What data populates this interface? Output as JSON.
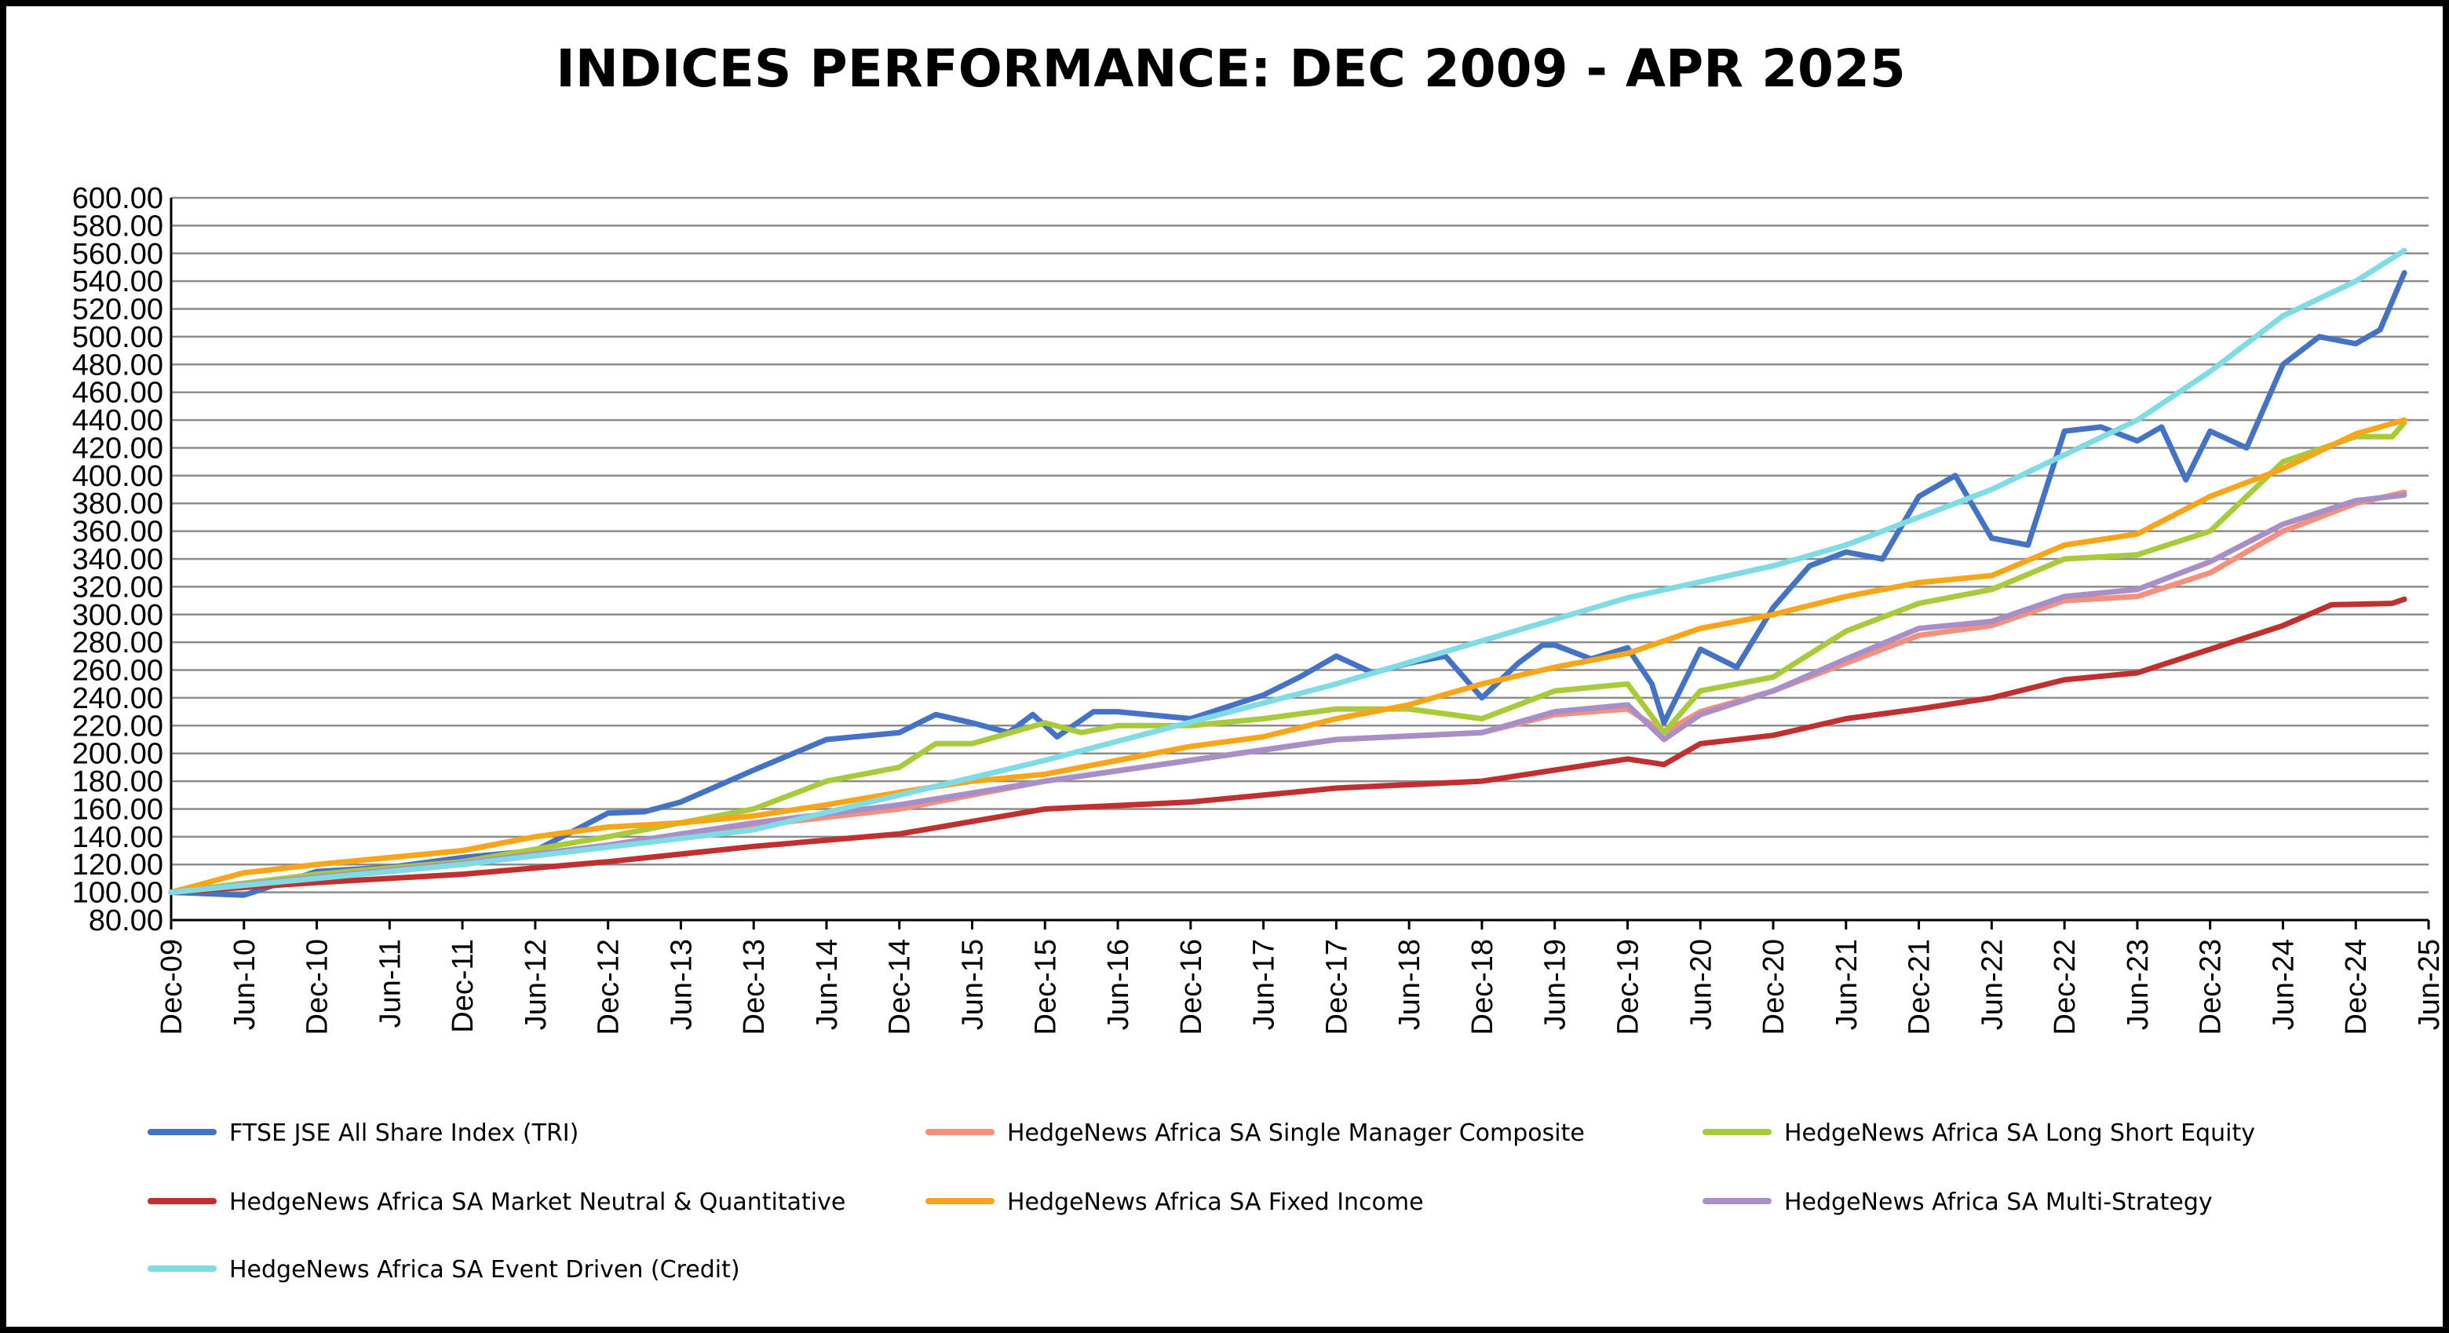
{
  "chart_data": {
    "type": "line",
    "title": "INDICES PERFORMANCE: DEC 2009 - APR 2025",
    "xlabel": "",
    "ylabel": "",
    "ylim": [
      80,
      600
    ],
    "y_ticks": [
      "80.00",
      "100.00",
      "120.00",
      "140.00",
      "160.00",
      "180.00",
      "200.00",
      "220.00",
      "240.00",
      "260.00",
      "280.00",
      "300.00",
      "320.00",
      "340.00",
      "360.00",
      "380.00",
      "400.00",
      "420.00",
      "440.00",
      "460.00",
      "480.00",
      "500.00",
      "520.00",
      "540.00",
      "560.00",
      "580.00",
      "600.00"
    ],
    "x_ticks": [
      "Dec-09",
      "Jun-10",
      "Dec-10",
      "Jun-11",
      "Dec-11",
      "Jun-12",
      "Dec-12",
      "Jun-13",
      "Dec-13",
      "Jun-14",
      "Dec-14",
      "Jun-15",
      "Dec-15",
      "Jun-16",
      "Dec-16",
      "Jun-17",
      "Dec-17",
      "Jun-18",
      "Dec-18",
      "Jun-19",
      "Dec-19",
      "Jun-20",
      "Dec-20",
      "Jun-21",
      "Dec-21",
      "Jun-22",
      "Dec-22",
      "Jun-23",
      "Dec-23",
      "Jun-24",
      "Dec-24",
      "Jun-25"
    ],
    "x_range": [
      "Dec-09",
      "Jun-25"
    ],
    "grid": true,
    "legend_position": "bottom",
    "series": [
      {
        "name": "FTSE JSE All Share Index (TRI)",
        "color": "#4472C4",
        "points": [
          [
            "Dec-09",
            100
          ],
          [
            "Jun-10",
            98
          ],
          [
            "Dec-10",
            115
          ],
          [
            "Jun-11",
            118
          ],
          [
            "Dec-11",
            125
          ],
          [
            "Jun-12",
            130
          ],
          [
            "Dec-12",
            157
          ],
          [
            "Mar-13",
            158
          ],
          [
            "Jun-13",
            165
          ],
          [
            "Dec-13",
            188
          ],
          [
            "Jun-14",
            210
          ],
          [
            "Dec-14",
            215
          ],
          [
            "Mar-15",
            228
          ],
          [
            "Jun-15",
            222
          ],
          [
            "Sep-15",
            215
          ],
          [
            "Nov-15",
            228
          ],
          [
            "Jan-16",
            212
          ],
          [
            "Apr-16",
            230
          ],
          [
            "Jun-16",
            230
          ],
          [
            "Dec-16",
            225
          ],
          [
            "Jun-17",
            242
          ],
          [
            "Sep-17",
            255
          ],
          [
            "Dec-17",
            270
          ],
          [
            "Mar-18",
            258
          ],
          [
            "Jun-18",
            265
          ],
          [
            "Sep-18",
            270
          ],
          [
            "Dec-18",
            240
          ],
          [
            "Mar-19",
            265
          ],
          [
            "May-19",
            278
          ],
          [
            "Jun-19",
            278
          ],
          [
            "Sep-19",
            268
          ],
          [
            "Dec-19",
            276
          ],
          [
            "Feb-20",
            250
          ],
          [
            "Mar-20",
            222
          ],
          [
            "Jun-20",
            275
          ],
          [
            "Sep-20",
            262
          ],
          [
            "Dec-20",
            305
          ],
          [
            "Mar-21",
            335
          ],
          [
            "Jun-21",
            345
          ],
          [
            "Sep-21",
            340
          ],
          [
            "Dec-21",
            385
          ],
          [
            "Mar-22",
            400
          ],
          [
            "Jun-22",
            355
          ],
          [
            "Sep-22",
            350
          ],
          [
            "Dec-22",
            432
          ],
          [
            "Mar-23",
            435
          ],
          [
            "Jun-23",
            425
          ],
          [
            "Aug-23",
            435
          ],
          [
            "Oct-23",
            397
          ],
          [
            "Dec-23",
            432
          ],
          [
            "Mar-24",
            420
          ],
          [
            "Jun-24",
            480
          ],
          [
            "Sep-24",
            500
          ],
          [
            "Dec-24",
            495
          ],
          [
            "Feb-25",
            505
          ],
          [
            "Apr-25",
            546
          ]
        ]
      },
      {
        "name": "HedgeNews Africa SA Single Manager Composite",
        "color": "#F4907C",
        "points": [
          [
            "Dec-09",
            100
          ],
          [
            "Dec-10",
            110
          ],
          [
            "Dec-11",
            120
          ],
          [
            "Dec-12",
            133
          ],
          [
            "Dec-13",
            148
          ],
          [
            "Dec-14",
            160
          ],
          [
            "Dec-15",
            180
          ],
          [
            "Dec-16",
            195
          ],
          [
            "Dec-17",
            210
          ],
          [
            "Dec-18",
            215
          ],
          [
            "Jun-19",
            228
          ],
          [
            "Dec-19",
            232
          ],
          [
            "Mar-20",
            215
          ],
          [
            "Jun-20",
            230
          ],
          [
            "Dec-20",
            245
          ],
          [
            "Jun-21",
            265
          ],
          [
            "Dec-21",
            285
          ],
          [
            "Jun-22",
            292
          ],
          [
            "Dec-22",
            310
          ],
          [
            "Jun-23",
            313
          ],
          [
            "Dec-23",
            330
          ],
          [
            "Jun-24",
            360
          ],
          [
            "Dec-24",
            380
          ],
          [
            "Apr-25",
            388
          ]
        ]
      },
      {
        "name": "HedgeNews Africa SA Long Short Equity",
        "color": "#A9CB3B",
        "points": [
          [
            "Dec-09",
            100
          ],
          [
            "Dec-10",
            113
          ],
          [
            "Dec-11",
            122
          ],
          [
            "Dec-12",
            140
          ],
          [
            "Dec-13",
            160
          ],
          [
            "Jun-14",
            180
          ],
          [
            "Dec-14",
            190
          ],
          [
            "Mar-15",
            207
          ],
          [
            "Jun-15",
            207
          ],
          [
            "Dec-15",
            222
          ],
          [
            "Mar-16",
            215
          ],
          [
            "Jun-16",
            220
          ],
          [
            "Dec-16",
            220
          ],
          [
            "Jun-17",
            225
          ],
          [
            "Dec-17",
            232
          ],
          [
            "Jun-18",
            232
          ],
          [
            "Dec-18",
            225
          ],
          [
            "Jun-19",
            245
          ],
          [
            "Dec-19",
            250
          ],
          [
            "Mar-20",
            215
          ],
          [
            "Jun-20",
            245
          ],
          [
            "Dec-20",
            255
          ],
          [
            "Jun-21",
            288
          ],
          [
            "Dec-21",
            308
          ],
          [
            "Jun-22",
            318
          ],
          [
            "Dec-22",
            340
          ],
          [
            "Jun-23",
            343
          ],
          [
            "Dec-23",
            360
          ],
          [
            "Jun-24",
            410
          ],
          [
            "Dec-24",
            428
          ],
          [
            "Mar-25",
            428
          ],
          [
            "Apr-25",
            438
          ]
        ]
      },
      {
        "name": "HedgeNews Africa SA Market Neutral & Quantitative",
        "color": "#C0302E",
        "points": [
          [
            "Dec-09",
            100
          ],
          [
            "Dec-10",
            107
          ],
          [
            "Dec-11",
            113
          ],
          [
            "Dec-12",
            122
          ],
          [
            "Dec-13",
            133
          ],
          [
            "Dec-14",
            142
          ],
          [
            "Dec-15",
            160
          ],
          [
            "Dec-16",
            165
          ],
          [
            "Dec-17",
            175
          ],
          [
            "Dec-18",
            180
          ],
          [
            "Dec-19",
            196
          ],
          [
            "Mar-20",
            192
          ],
          [
            "Jun-20",
            207
          ],
          [
            "Dec-20",
            213
          ],
          [
            "Jun-21",
            225
          ],
          [
            "Dec-21",
            232
          ],
          [
            "Jun-22",
            240
          ],
          [
            "Dec-22",
            253
          ],
          [
            "Jun-23",
            258
          ],
          [
            "Dec-23",
            275
          ],
          [
            "Jun-24",
            292
          ],
          [
            "Oct-24",
            307
          ],
          [
            "Mar-25",
            308
          ],
          [
            "Apr-25",
            311
          ]
        ]
      },
      {
        "name": "HedgeNews Africa SA Fixed Income",
        "color": "#F9A51A",
        "points": [
          [
            "Dec-09",
            100
          ],
          [
            "Jun-10",
            114
          ],
          [
            "Dec-10",
            120
          ],
          [
            "Jun-11",
            125
          ],
          [
            "Dec-11",
            130
          ],
          [
            "Jun-12",
            140
          ],
          [
            "Dec-12",
            147
          ],
          [
            "Jun-13",
            150
          ],
          [
            "Dec-13",
            155
          ],
          [
            "Jun-14",
            163
          ],
          [
            "Dec-14",
            172
          ],
          [
            "Jun-15",
            180
          ],
          [
            "Dec-15",
            185
          ],
          [
            "Jun-16",
            195
          ],
          [
            "Dec-16",
            205
          ],
          [
            "Jun-17",
            212
          ],
          [
            "Dec-17",
            225
          ],
          [
            "Jun-18",
            235
          ],
          [
            "Dec-18",
            250
          ],
          [
            "Jun-19",
            262
          ],
          [
            "Dec-19",
            272
          ],
          [
            "Jun-20",
            290
          ],
          [
            "Dec-20",
            300
          ],
          [
            "Jun-21",
            313
          ],
          [
            "Dec-21",
            323
          ],
          [
            "Jun-22",
            328
          ],
          [
            "Dec-22",
            350
          ],
          [
            "Jun-23",
            358
          ],
          [
            "Dec-23",
            385
          ],
          [
            "Jun-24",
            405
          ],
          [
            "Dec-24",
            430
          ],
          [
            "Apr-25",
            440
          ]
        ]
      },
      {
        "name": "HedgeNews Africa SA Multi-Strategy",
        "color": "#A98FC7",
        "points": [
          [
            "Dec-09",
            100
          ],
          [
            "Dec-10",
            111
          ],
          [
            "Dec-11",
            121
          ],
          [
            "Dec-12",
            134
          ],
          [
            "Dec-13",
            150
          ],
          [
            "Dec-14",
            163
          ],
          [
            "Dec-15",
            180
          ],
          [
            "Dec-16",
            195
          ],
          [
            "Dec-17",
            210
          ],
          [
            "Dec-18",
            215
          ],
          [
            "Jun-19",
            230
          ],
          [
            "Dec-19",
            235
          ],
          [
            "Mar-20",
            210
          ],
          [
            "Jun-20",
            228
          ],
          [
            "Dec-20",
            245
          ],
          [
            "Jun-21",
            268
          ],
          [
            "Dec-21",
            290
          ],
          [
            "Jun-22",
            295
          ],
          [
            "Dec-22",
            313
          ],
          [
            "Jun-23",
            318
          ],
          [
            "Dec-23",
            338
          ],
          [
            "Jun-24",
            365
          ],
          [
            "Dec-24",
            382
          ],
          [
            "Apr-25",
            386
          ]
        ]
      },
      {
        "name": "HedgeNews Africa SA Event Driven (Credit)",
        "color": "#7FDBE4",
        "points": [
          [
            "Dec-09",
            100
          ],
          [
            "Dec-11",
            120
          ],
          [
            "Dec-13",
            145
          ],
          [
            "Dec-15",
            195
          ],
          [
            "Dec-17",
            250
          ],
          [
            "Dec-19",
            312
          ],
          [
            "Dec-20",
            335
          ],
          [
            "Jun-21",
            350
          ],
          [
            "Dec-21",
            370
          ],
          [
            "Jun-22",
            390
          ],
          [
            "Dec-22",
            415
          ],
          [
            "Jun-23",
            440
          ],
          [
            "Dec-23",
            475
          ],
          [
            "Jun-24",
            515
          ],
          [
            "Dec-24",
            540
          ],
          [
            "Apr-25",
            562
          ]
        ]
      }
    ]
  }
}
